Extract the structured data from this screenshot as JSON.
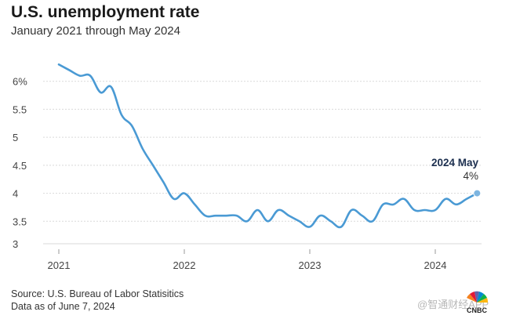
{
  "header": {
    "title": "U.S. unemployment rate",
    "subtitle": "January 2021 through May 2024"
  },
  "footer": {
    "source": "Source: U.S. Bureau of Labor Statisitics",
    "data_as_of": "Data as of June 7, 2024"
  },
  "watermark": "@智通财经APP",
  "logo_text": "CNBC",
  "colors": {
    "line": "#4a9ad4",
    "grid": "#d9d9d9",
    "annotation": "#1c2f4f"
  },
  "chart_data": {
    "type": "line",
    "title": "U.S. unemployment rate",
    "subtitle": "January 2021 through May 2024",
    "xlabel": "",
    "ylabel": "",
    "ylim": [
      3,
      6.5
    ],
    "y_ticks": [
      {
        "value": 3,
        "label": "3"
      },
      {
        "value": 3.5,
        "label": "3.5"
      },
      {
        "value": 4,
        "label": "4"
      },
      {
        "value": 4.5,
        "label": "4.5"
      },
      {
        "value": 5,
        "label": "5"
      },
      {
        "value": 5.5,
        "label": "5.5"
      },
      {
        "value": 6,
        "label": "6%"
      }
    ],
    "x_ticks": [
      "2021",
      "2022",
      "2023",
      "2024"
    ],
    "grid": "horizontal",
    "series": [
      {
        "dates": [
          "2021-01",
          "2021-02",
          "2021-03",
          "2021-04",
          "2021-05",
          "2021-06",
          "2021-07",
          "2021-08",
          "2021-09",
          "2021-10",
          "2021-11",
          "2021-12",
          "2022-01",
          "2022-02",
          "2022-03",
          "2022-04",
          "2022-05",
          "2022-06",
          "2022-07",
          "2022-08",
          "2022-09",
          "2022-10",
          "2022-11",
          "2022-12",
          "2023-01",
          "2023-02",
          "2023-03",
          "2023-04",
          "2023-05",
          "2023-06",
          "2023-07",
          "2023-08",
          "2023-09",
          "2023-10",
          "2023-11",
          "2023-12",
          "2024-01",
          "2024-02",
          "2024-03",
          "2024-04",
          "2024-05"
        ],
        "values": [
          6.3,
          6.2,
          6.1,
          6.1,
          5.8,
          5.9,
          5.4,
          5.2,
          4.8,
          4.5,
          4.2,
          3.9,
          4.0,
          3.8,
          3.6,
          3.6,
          3.6,
          3.6,
          3.5,
          3.7,
          3.5,
          3.7,
          3.6,
          3.5,
          3.4,
          3.6,
          3.5,
          3.4,
          3.7,
          3.6,
          3.5,
          3.8,
          3.8,
          3.9,
          3.7,
          3.7,
          3.7,
          3.9,
          3.8,
          3.9,
          4.0
        ]
      }
    ],
    "annotations": [
      {
        "date": "2024-05",
        "label": "2024 May",
        "value_label": "4%"
      }
    ]
  }
}
